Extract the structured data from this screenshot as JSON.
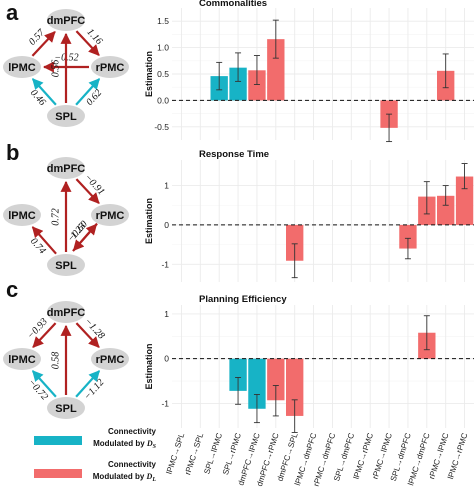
{
  "colors": {
    "teal": "#17b3c6",
    "red": "#f26c6c",
    "dark_red": "#b02121",
    "node": "#d3d3d3",
    "grid": "#ebebeb"
  },
  "networks": [
    {
      "letter": "a",
      "nodes": {
        "top": "dmPFC",
        "left": "lPMC",
        "right": "rPMC",
        "bottom": "SPL"
      },
      "edges": [
        {
          "from": "left",
          "to": "top",
          "value": "0.57",
          "color": "dark_red"
        },
        {
          "from": "top",
          "to": "right",
          "value": "1.16",
          "color": "dark_red"
        },
        {
          "from": "right",
          "to": "left",
          "value": "−0.52",
          "color": "dark_red"
        },
        {
          "from": "bottom",
          "to": "top",
          "value": "0.56",
          "color": "dark_red"
        },
        {
          "from": "bottom",
          "to": "left",
          "value": "0.46",
          "color": "teal"
        },
        {
          "from": "bottom",
          "to": "right",
          "value": "0.62",
          "color": "teal"
        }
      ]
    },
    {
      "letter": "b",
      "nodes": {
        "top": "dmPFC",
        "left": "lPMC",
        "right": "rPMC",
        "bottom": "SPL"
      },
      "edges": [
        {
          "from": "top",
          "to": "right",
          "value": "−0.91",
          "color": "dark_red"
        },
        {
          "from": "bottom",
          "to": "top",
          "value": "0.72",
          "color": "dark_red"
        },
        {
          "from": "bottom",
          "to": "left",
          "value": "0.74",
          "color": "dark_red"
        },
        {
          "from": "bottom",
          "to": "right",
          "value": "−0.60",
          "color": "dark_red"
        },
        {
          "from": "right",
          "to": "bottom",
          "value": "1.23",
          "color": "dark_red"
        }
      ]
    },
    {
      "letter": "c",
      "nodes": {
        "top": "dmPFC",
        "left": "lPMC",
        "right": "rPMC",
        "bottom": "SPL"
      },
      "edges": [
        {
          "from": "top",
          "to": "left",
          "value": "−0.93",
          "color": "dark_red"
        },
        {
          "from": "top",
          "to": "right",
          "value": "−1.28",
          "color": "dark_red"
        },
        {
          "from": "bottom",
          "to": "top",
          "value": "0.58",
          "color": "dark_red"
        },
        {
          "from": "bottom",
          "to": "left",
          "value": "−0.72",
          "color": "teal"
        },
        {
          "from": "bottom",
          "to": "right",
          "value": "−1.12",
          "color": "teal"
        }
      ]
    }
  ],
  "legend": [
    {
      "line1": "Connectivity",
      "line2": "Modulated by ",
      "sym": "D",
      "sub": "S",
      "color": "teal"
    },
    {
      "line1": "Connectivity",
      "line2": "Modulated by ",
      "sym": "D",
      "sub": "L",
      "color": "red"
    }
  ],
  "chart_data": {
    "type": "bar",
    "categories": [
      "lPMC→SPL",
      "rPMC→SPL",
      "SPL→lPMC",
      "SPL→rPMC",
      "dmPFC→lPMC",
      "dmPFC→rPMC",
      "dmPFC→SPL",
      "lPMC→dmPFC",
      "rPMC→dmPFC",
      "SPL→dmPFC",
      "lPMC→rPMC",
      "rPMC→lPMC",
      "SPL→dmPFC",
      "lPMC→dmPFC",
      "rPMC→lPMC",
      "lPMC→rPMC"
    ],
    "panels": [
      {
        "title": "Commonalities",
        "ylabel": "Estimation",
        "ylim": [
          -0.75,
          1.75
        ],
        "yticks": [
          -0.5,
          0.0,
          0.5,
          1.0,
          1.5
        ],
        "ytick_labels": [
          "-0.5",
          "0.0",
          "0.5",
          "1.0",
          "1.5"
        ],
        "bars": [
          {
            "index": 2,
            "value": 0.46,
            "lo": 0.2,
            "hi": 0.72,
            "color": "teal"
          },
          {
            "index": 3,
            "value": 0.62,
            "lo": 0.36,
            "hi": 0.9,
            "color": "teal"
          },
          {
            "index": 4,
            "value": 0.57,
            "lo": 0.3,
            "hi": 0.85,
            "color": "red"
          },
          {
            "index": 5,
            "value": 1.16,
            "lo": 0.8,
            "hi": 1.52,
            "color": "red"
          },
          {
            "index": 11,
            "value": -0.52,
            "lo": -0.78,
            "hi": -0.26,
            "color": "red"
          },
          {
            "index": 14,
            "value": 0.56,
            "lo": 0.24,
            "hi": 0.88,
            "color": "red"
          }
        ]
      },
      {
        "title": "Response Time",
        "ylabel": "Estimation",
        "ylim": [
          -1.45,
          1.65
        ],
        "yticks": [
          -1,
          0,
          1
        ],
        "ytick_labels": [
          "-1",
          "0",
          "1"
        ],
        "bars": [
          {
            "index": 6,
            "value": -0.91,
            "lo": -1.34,
            "hi": -0.48,
            "color": "red"
          },
          {
            "index": 12,
            "value": -0.6,
            "lo": -0.86,
            "hi": -0.34,
            "color": "red"
          },
          {
            "index": 13,
            "value": 0.72,
            "lo": 0.28,
            "hi": 1.1,
            "color": "red"
          },
          {
            "index": 14,
            "value": 0.74,
            "lo": 0.5,
            "hi": 1.0,
            "color": "red"
          },
          {
            "index": 15,
            "value": 1.23,
            "lo": 0.92,
            "hi": 1.56,
            "color": "red"
          }
        ]
      },
      {
        "title": "Planning Efficiency",
        "ylabel": "Estimation",
        "ylim": [
          -1.55,
          1.2
        ],
        "yticks": [
          -1,
          0,
          1
        ],
        "ytick_labels": [
          "-1",
          "0",
          "1"
        ],
        "bars": [
          {
            "index": 3,
            "value": -0.72,
            "lo": -1.02,
            "hi": -0.42,
            "color": "teal"
          },
          {
            "index": 4,
            "value": -1.12,
            "lo": -1.43,
            "hi": -0.8,
            "color": "teal"
          },
          {
            "index": 5,
            "value": -0.93,
            "lo": -1.28,
            "hi": -0.6,
            "color": "red"
          },
          {
            "index": 6,
            "value": -1.28,
            "lo": -1.65,
            "hi": -0.92,
            "color": "red"
          },
          {
            "index": 13,
            "value": 0.58,
            "lo": 0.2,
            "hi": 0.96,
            "color": "red"
          }
        ]
      }
    ]
  }
}
